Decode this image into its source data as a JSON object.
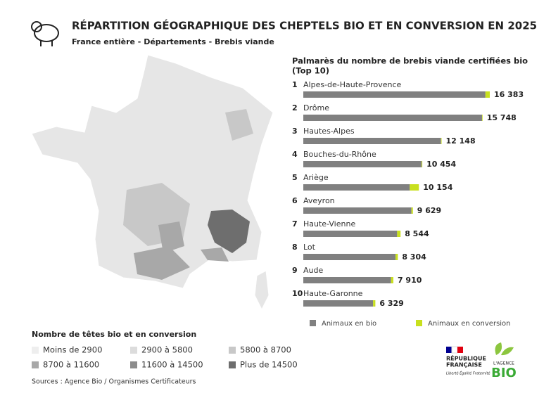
{
  "chart_data": {
    "type": "bar",
    "orientation": "horizontal",
    "stacked": true,
    "title": "RÉPARTITION GÉOGRAPHIQUE DES CHEPTELS BIO ET EN CONVERSION EN 2025",
    "subtitle": "France entière - Départements - Brebis viande",
    "title_line1": "Palmarès du nombre de brebis viande certifiées bio",
    "title_line2": "(Top 10)",
    "ranks": [
      "1",
      "2",
      "3",
      "4",
      "5",
      "6",
      "7",
      "8",
      "9",
      "10"
    ],
    "categories": [
      "Alpes-de-Haute-Provence",
      "Drôme",
      "Hautes-Alpes",
      "Bouches-du-Rhône",
      "Ariège",
      "Aveyron",
      "Haute-Vienne",
      "Lot",
      "Aude",
      "Haute-Garonne"
    ],
    "series": [
      {
        "name": "Animaux en bio",
        "color": "#808080",
        "values": [
          16000,
          15700,
          12100,
          10400,
          9354,
          9500,
          8244,
          8104,
          7710,
          6129
        ]
      },
      {
        "name": "Animaux en conversion",
        "color": "#c8e01e",
        "values": [
          383,
          48,
          48,
          54,
          800,
          129,
          300,
          200,
          200,
          200
        ]
      }
    ],
    "value_labels": [
      "16 383",
      "15 748",
      "12 148",
      "10 454",
      "10 154",
      "9 629",
      "8 544",
      "8 304",
      "7 910",
      "6 329"
    ],
    "xlim": [
      0,
      17000
    ]
  },
  "map_legend": {
    "title": "Nombre de têtes bio et en conversion",
    "items": [
      {
        "label": "Moins de 2900",
        "color": "#eeeeee"
      },
      {
        "label": "2900 à 5800",
        "color": "#dcdcdc"
      },
      {
        "label": "5800 à 8700",
        "color": "#c8c8c8"
      },
      {
        "label": "8700 à 11600",
        "color": "#a8a8a8"
      },
      {
        "label": "11600 à 14500",
        "color": "#8c8c8c"
      },
      {
        "label": "Plus de 14500",
        "color": "#6e6e6e"
      }
    ]
  },
  "sources": "Sources : Agence Bio / Organismes Certificateurs",
  "logos": {
    "republique_1": "RÉPUBLIQUE",
    "republique_2": "FRANÇAISE",
    "devise": "Liberté Égalité Fraternité",
    "agence": "L'AGENCE",
    "bio": "BIO"
  }
}
